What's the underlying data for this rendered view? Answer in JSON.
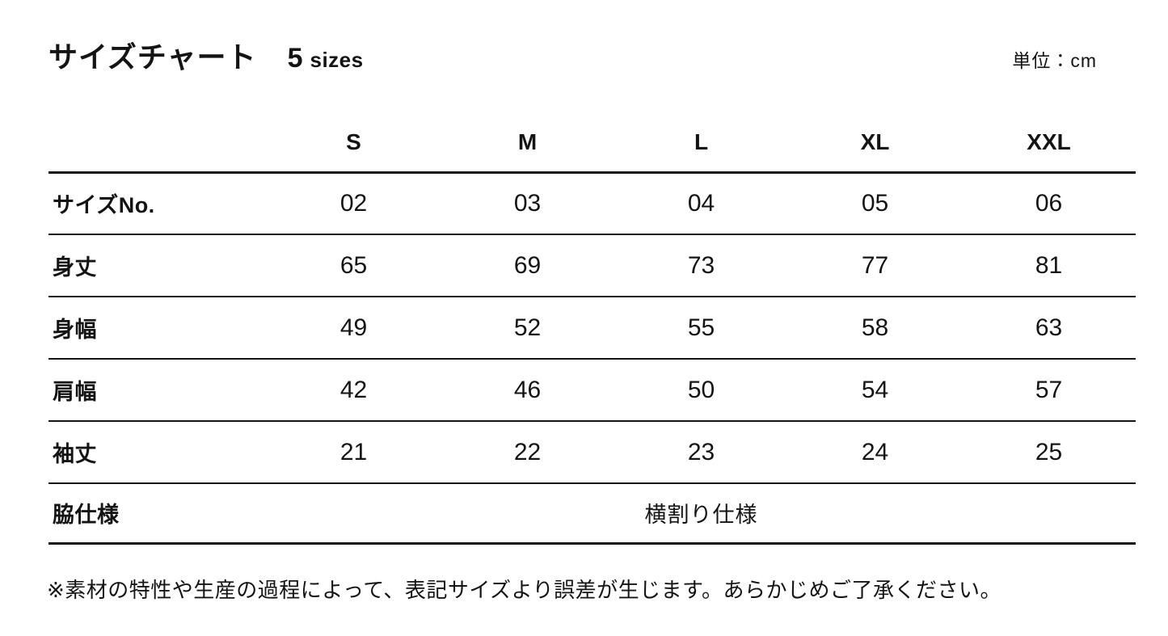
{
  "header": {
    "title": "サイズチャート",
    "sizes_count": "5",
    "sizes_label": "sizes",
    "unit_label": "単位：cm"
  },
  "chart_data": {
    "type": "table",
    "title": "サイズチャート 5 sizes",
    "unit": "cm",
    "columns": [
      "S",
      "M",
      "L",
      "XL",
      "XXL"
    ],
    "rows": [
      {
        "label": "サイズNo.",
        "values": [
          "02",
          "03",
          "04",
          "05",
          "06"
        ]
      },
      {
        "label": "身丈",
        "values": [
          "65",
          "69",
          "73",
          "77",
          "81"
        ]
      },
      {
        "label": "身幅",
        "values": [
          "49",
          "52",
          "55",
          "58",
          "63"
        ]
      },
      {
        "label": "肩幅",
        "values": [
          "42",
          "46",
          "50",
          "54",
          "57"
        ]
      },
      {
        "label": "袖丈",
        "values": [
          "21",
          "22",
          "23",
          "24",
          "25"
        ]
      }
    ],
    "span_row": {
      "label": "脇仕様",
      "value": "横割り仕様"
    }
  },
  "footnote": "※素材の特性や生産の過程によって、表記サイズより誤差が生じます。あらかじめご了承ください。",
  "colors": {
    "background": "#ffffff",
    "text": "#141414",
    "rule": "#141414"
  }
}
